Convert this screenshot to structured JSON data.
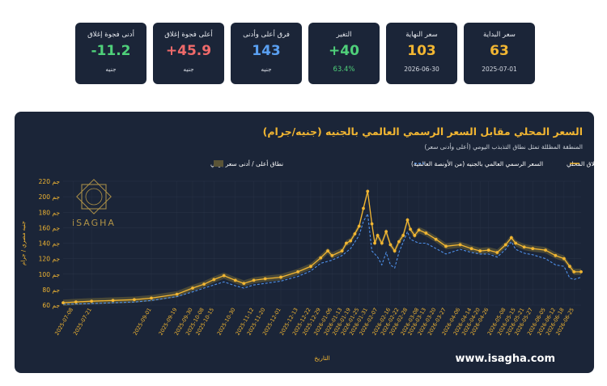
{
  "stats": [
    {
      "label": "سعر البداية",
      "value": "63",
      "sub": "2025-07-01",
      "color": "#f2b632",
      "sub_style": "date"
    },
    {
      "label": "سعر النهاية",
      "value": "103",
      "sub": "2026-06-30",
      "color": "#f2b632",
      "sub_style": "date"
    },
    {
      "label": "التغير",
      "value": "+40",
      "sub": "63.4%",
      "color": "#4fd07a",
      "sub_style": "green"
    },
    {
      "label": "فرق أعلى وأدنى",
      "value": "143",
      "sub": "جنيه",
      "color": "#5aa0f2",
      "sub_style": "unit"
    },
    {
      "label": "أعلى فجوة إغلاق",
      "value": "+45.9",
      "sub": "جنيه",
      "color": "#ef6a6a",
      "sub_style": "unit"
    },
    {
      "label": "أدنى فجوة إغلاق",
      "value": "-11.2",
      "sub": "جنيه",
      "color": "#4fd07a",
      "sub_style": "unit"
    }
  ],
  "footer": "www.isagha.com",
  "logo": {
    "text": "iSAGHA",
    "icon": "isagha-logo-icon"
  },
  "colors": {
    "local": "#f2b632",
    "global": "#4e8fe8",
    "band": "#5a5437",
    "bg": "#1b2538",
    "grid": "#2b3548"
  },
  "chart_data": {
    "type": "line",
    "title": "السعر المحلي مقابل السعر الرسمي العالمي بالجنيه (جنيه/جرام)",
    "subtitle": "المنطقة المظللة تمثل نطاق التذبذب اليومي (أعلى وأدنى سعر)",
    "xlabel": "التاريخ",
    "ylabel": "جنيه مصري / جرام",
    "ylim": [
      60,
      220
    ],
    "yticks": [
      "60 جم",
      "80 جم",
      "100 جم",
      "120 جم",
      "140 جم",
      "160 جم",
      "180 جم",
      "200 جم",
      "220 جم"
    ],
    "ytick_values": [
      60,
      80,
      100,
      120,
      140,
      160,
      180,
      200,
      220
    ],
    "x_start": "2025-07-01",
    "x_end": "2026-06-30",
    "xticks": [
      "2025-07-08",
      "2025-07-21",
      "2025-09-01",
      "2025-09-19",
      "2025-09-30",
      "2025-10-08",
      "2025-10-15",
      "2025-10-30",
      "2025-11-12",
      "2025-11-20",
      "2025-12-01",
      "2025-12-13",
      "2025-12-22",
      "2025-12-29",
      "2026-01-06",
      "2026-01-13",
      "2026-01-19",
      "2026-01-25",
      "2026-01-31",
      "2026-02-07",
      "2026-02-16",
      "2026-02-22",
      "2026-02-28",
      "2026-03-08",
      "2026-03-13",
      "2026-03-20",
      "2026-03-27",
      "2026-04-06",
      "2026-04-14",
      "2026-04-20",
      "2026-04-26",
      "2026-05-08",
      "2026-05-15",
      "2026-05-21",
      "2026-05-27",
      "2026-06-05",
      "2026-06-12",
      "2026-06-18",
      "2026-06-25"
    ],
    "legend": {
      "position": "top-right",
      "entries": [
        "السعر الإغلاق المحلي",
        "السعر الرسمي العالمي بالجنيه (من الأونصة العالمية)",
        "نطاق أعلى / أدنى سعر يومي"
      ]
    },
    "grid": true,
    "series": [
      {
        "name": "السعر الإغلاق المحلي",
        "style": "line-markers",
        "points": [
          [
            "2025-07-01",
            63
          ],
          [
            "2025-07-10",
            64
          ],
          [
            "2025-07-21",
            65
          ],
          [
            "2025-08-05",
            66
          ],
          [
            "2025-08-20",
            67
          ],
          [
            "2025-09-01",
            69
          ],
          [
            "2025-09-19",
            74
          ],
          [
            "2025-09-30",
            82
          ],
          [
            "2025-10-08",
            87
          ],
          [
            "2025-10-15",
            93
          ],
          [
            "2025-10-22",
            98
          ],
          [
            "2025-10-30",
            92
          ],
          [
            "2025-11-05",
            88
          ],
          [
            "2025-11-12",
            92
          ],
          [
            "2025-11-20",
            94
          ],
          [
            "2025-12-01",
            96
          ],
          [
            "2025-12-13",
            103
          ],
          [
            "2025-12-22",
            110
          ],
          [
            "2025-12-29",
            121
          ],
          [
            "2026-01-03",
            130
          ],
          [
            "2026-01-06",
            124
          ],
          [
            "2026-01-13",
            130
          ],
          [
            "2026-01-16",
            140
          ],
          [
            "2026-01-19",
            143
          ],
          [
            "2026-01-22",
            152
          ],
          [
            "2026-01-25",
            162
          ],
          [
            "2026-01-28",
            185
          ],
          [
            "2026-01-31",
            207
          ],
          [
            "2026-02-03",
            165
          ],
          [
            "2026-02-05",
            140
          ],
          [
            "2026-02-07",
            150
          ],
          [
            "2026-02-10",
            140
          ],
          [
            "2026-02-13",
            155
          ],
          [
            "2026-02-16",
            138
          ],
          [
            "2026-02-19",
            130
          ],
          [
            "2026-02-22",
            142
          ],
          [
            "2026-02-25",
            150
          ],
          [
            "2026-02-28",
            170
          ],
          [
            "2026-03-02",
            158
          ],
          [
            "2026-03-05",
            150
          ],
          [
            "2026-03-08",
            157
          ],
          [
            "2026-03-13",
            153
          ],
          [
            "2026-03-20",
            145
          ],
          [
            "2026-03-27",
            136
          ],
          [
            "2026-04-06",
            138
          ],
          [
            "2026-04-14",
            133
          ],
          [
            "2026-04-20",
            130
          ],
          [
            "2026-04-26",
            131
          ],
          [
            "2026-05-02",
            128
          ],
          [
            "2026-05-08",
            138
          ],
          [
            "2026-05-12",
            147
          ],
          [
            "2026-05-15",
            140
          ],
          [
            "2026-05-21",
            135
          ],
          [
            "2026-05-27",
            133
          ],
          [
            "2026-06-05",
            131
          ],
          [
            "2026-06-12",
            124
          ],
          [
            "2026-06-18",
            120
          ],
          [
            "2026-06-22",
            110
          ],
          [
            "2026-06-25",
            103
          ],
          [
            "2026-06-30",
            103
          ]
        ]
      },
      {
        "name": "السعر الرسمي العالمي بالجنيه (من الأونصة العالمية)",
        "style": "dashed",
        "points": [
          [
            "2025-07-01",
            61
          ],
          [
            "2025-07-21",
            62
          ],
          [
            "2025-08-20",
            64
          ],
          [
            "2025-09-01",
            66
          ],
          [
            "2025-09-19",
            71
          ],
          [
            "2025-09-30",
            77
          ],
          [
            "2025-10-08",
            82
          ],
          [
            "2025-10-15",
            86
          ],
          [
            "2025-10-22",
            90
          ],
          [
            "2025-10-30",
            85
          ],
          [
            "2025-11-05",
            82
          ],
          [
            "2025-11-12",
            86
          ],
          [
            "2025-11-20",
            88
          ],
          [
            "2025-12-01",
            91
          ],
          [
            "2025-12-13",
            97
          ],
          [
            "2025-12-22",
            104
          ],
          [
            "2025-12-29",
            114
          ],
          [
            "2026-01-06",
            118
          ],
          [
            "2026-01-13",
            124
          ],
          [
            "2026-01-19",
            133
          ],
          [
            "2026-01-25",
            150
          ],
          [
            "2026-01-28",
            168
          ],
          [
            "2026-01-31",
            178
          ],
          [
            "2026-02-03",
            130
          ],
          [
            "2026-02-07",
            122
          ],
          [
            "2026-02-10",
            112
          ],
          [
            "2026-02-13",
            128
          ],
          [
            "2026-02-16",
            112
          ],
          [
            "2026-02-19",
            108
          ],
          [
            "2026-02-22",
            128
          ],
          [
            "2026-02-28",
            155
          ],
          [
            "2026-03-02",
            145
          ],
          [
            "2026-03-08",
            140
          ],
          [
            "2026-03-13",
            140
          ],
          [
            "2026-03-20",
            133
          ],
          [
            "2026-03-27",
            126
          ],
          [
            "2026-04-06",
            132
          ],
          [
            "2026-04-14",
            128
          ],
          [
            "2026-04-20",
            126
          ],
          [
            "2026-04-26",
            126
          ],
          [
            "2026-05-02",
            122
          ],
          [
            "2026-05-08",
            132
          ],
          [
            "2026-05-12",
            142
          ],
          [
            "2026-05-15",
            132
          ],
          [
            "2026-05-21",
            127
          ],
          [
            "2026-05-27",
            125
          ],
          [
            "2026-06-05",
            120
          ],
          [
            "2026-06-12",
            112
          ],
          [
            "2026-06-18",
            110
          ],
          [
            "2026-06-22",
            95
          ],
          [
            "2026-06-25",
            93
          ],
          [
            "2026-06-30",
            96
          ]
        ]
      }
    ]
  }
}
